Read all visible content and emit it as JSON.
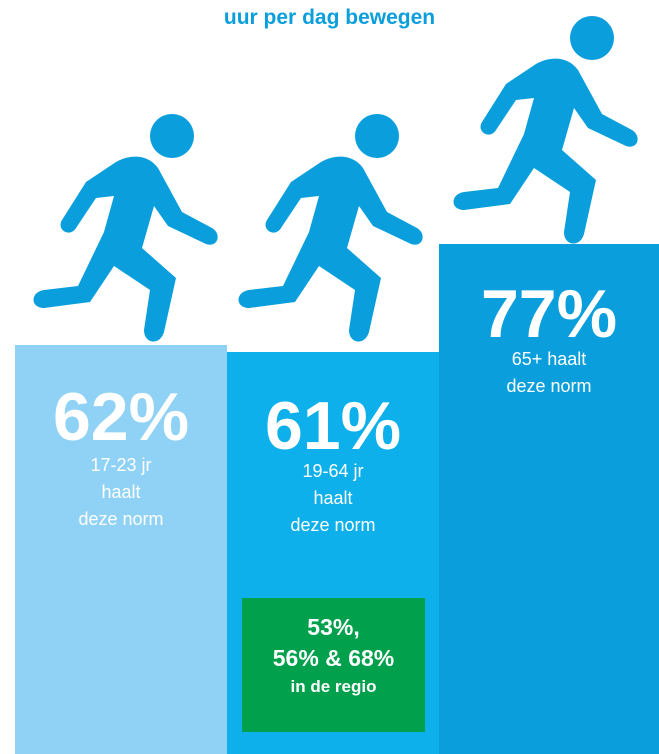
{
  "title": "uur per dag bewegen",
  "colors": {
    "title": "#0a9fdc",
    "runner": "#0a9fdc",
    "bar_light": "#8fd2f5",
    "bar_mid": "#0db0ea",
    "bar_dark": "#0a9fdc",
    "regio_box": "#00a04c"
  },
  "icons": {
    "runner": "running-person-icon"
  },
  "chart_data": {
    "type": "bar",
    "title": "uur per dag bewegen",
    "categories": [
      "17-23 jr",
      "19-64 jr",
      "65+"
    ],
    "values": [
      62,
      61,
      77
    ],
    "unit": "%",
    "series": [
      {
        "values": [
          62,
          61,
          77
        ],
        "labels": [
          "62%",
          "61%",
          "77%"
        ],
        "captions": [
          "17-23 jr\nhaalt\ndeze norm",
          "19-64 jr\nhaalt\ndeze norm",
          "65+ haalt\ndeze norm"
        ]
      }
    ],
    "annotation": {
      "line1": "53%,",
      "line2": "56% & 68%",
      "line3": "in de regio"
    }
  }
}
